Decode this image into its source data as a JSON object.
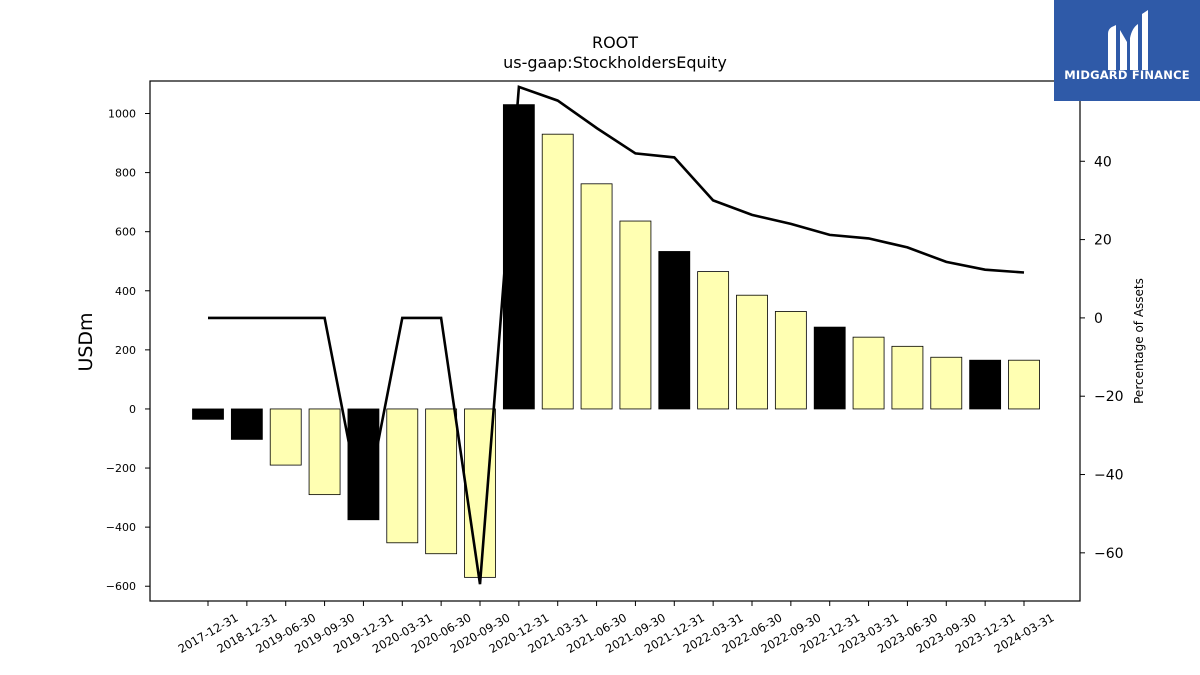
{
  "chart_data": {
    "type": "bar",
    "title": "ROOT",
    "subtitle": "us-gaap:StockholdersEquity",
    "ylabel": "USDm",
    "y2label": "Percentage of Assets",
    "ylim": [
      -650,
      1110
    ],
    "y2lim": [
      -72.3,
      60.5
    ],
    "yticks": [
      -600,
      -400,
      -200,
      0,
      200,
      400,
      600,
      800,
      1000
    ],
    "y2ticks": [
      -60,
      -40,
      -20,
      0,
      20,
      40,
      60
    ],
    "categories": [
      "2017-12-31",
      "2018-12-31",
      "2019-06-30",
      "2019-09-30",
      "2019-12-31",
      "2020-03-31",
      "2020-06-30",
      "2020-09-30",
      "2020-12-31",
      "2021-03-31",
      "2021-06-30",
      "2021-09-30",
      "2021-12-31",
      "2022-03-31",
      "2022-06-30",
      "2022-09-30",
      "2022-12-31",
      "2023-03-31",
      "2023-06-30",
      "2023-09-30",
      "2023-12-31",
      "2024-03-31"
    ],
    "series": [
      {
        "type": "bar",
        "values": [
          -35,
          -103,
          -190,
          -290,
          -375,
          -453,
          -490,
          -570,
          1030,
          930,
          762,
          636,
          533,
          465,
          385,
          330,
          277,
          243,
          212,
          175,
          165,
          165
        ],
        "colors": [
          "#000000",
          "#000000",
          "#ffffb2",
          "#ffffb2",
          "#000000",
          "#ffffb2",
          "#ffffb2",
          "#ffffb2",
          "#000000",
          "#ffffb2",
          "#ffffb2",
          "#ffffb2",
          "#000000",
          "#ffffb2",
          "#ffffb2",
          "#ffffb2",
          "#000000",
          "#ffffb2",
          "#ffffb2",
          "#ffffb2",
          "#000000",
          "#ffffb2"
        ]
      },
      {
        "type": "line",
        "axis": "right",
        "color": "#000000",
        "values": [
          0,
          0,
          0,
          0,
          -51,
          0,
          0,
          -68,
          59,
          55.5,
          48.5,
          42,
          41,
          30,
          26.3,
          24,
          21.2,
          20.3,
          18,
          14.3,
          12.3,
          11.6
        ]
      }
    ]
  },
  "logo": {
    "text": "MIDGARD FINANCE",
    "background": "#2f5aa8"
  }
}
